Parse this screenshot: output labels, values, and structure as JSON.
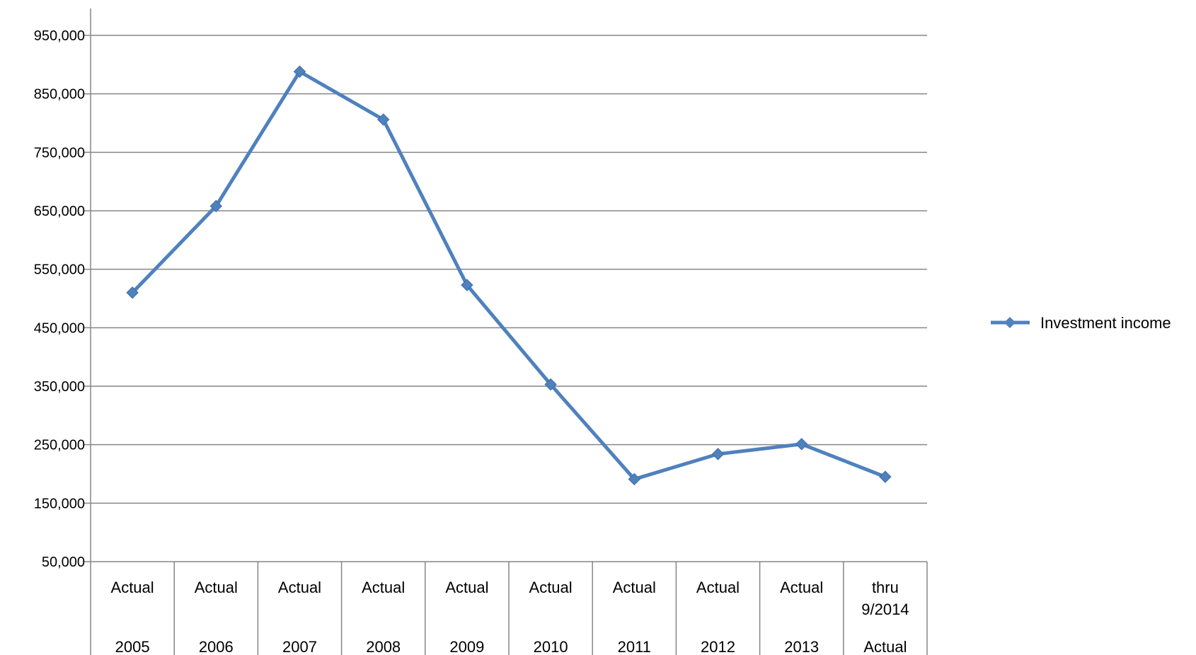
{
  "chart_data": {
    "type": "line",
    "categories": [
      [
        "Actual",
        "",
        "2005"
      ],
      [
        "Actual",
        "",
        "2006"
      ],
      [
        "Actual",
        "",
        "2007"
      ],
      [
        "Actual",
        "",
        "2008"
      ],
      [
        "Actual",
        "",
        "2009"
      ],
      [
        "Actual",
        "",
        "2010"
      ],
      [
        "Actual",
        "",
        "2011"
      ],
      [
        "Actual",
        "",
        "2012"
      ],
      [
        "Actual",
        "",
        "2013"
      ],
      [
        "thru",
        "9/2014",
        "Actual"
      ]
    ],
    "series": [
      {
        "name": "Investment income",
        "color": "#4F81BD",
        "marker": "diamond",
        "values": [
          510000,
          658000,
          888000,
          806000,
          523000,
          353000,
          191000,
          234000,
          251000,
          195000
        ]
      }
    ],
    "ylim": [
      50000,
      950000
    ],
    "yticks": [
      "950,000",
      "850,000",
      "750,000",
      "650,000",
      "550,000",
      "450,000",
      "350,000",
      "250,000",
      "150,000",
      "50,000"
    ],
    "ytick_values": [
      950000,
      850000,
      750000,
      650000,
      550000,
      450000,
      350000,
      250000,
      150000,
      50000
    ],
    "grid": true,
    "legend": "right"
  }
}
